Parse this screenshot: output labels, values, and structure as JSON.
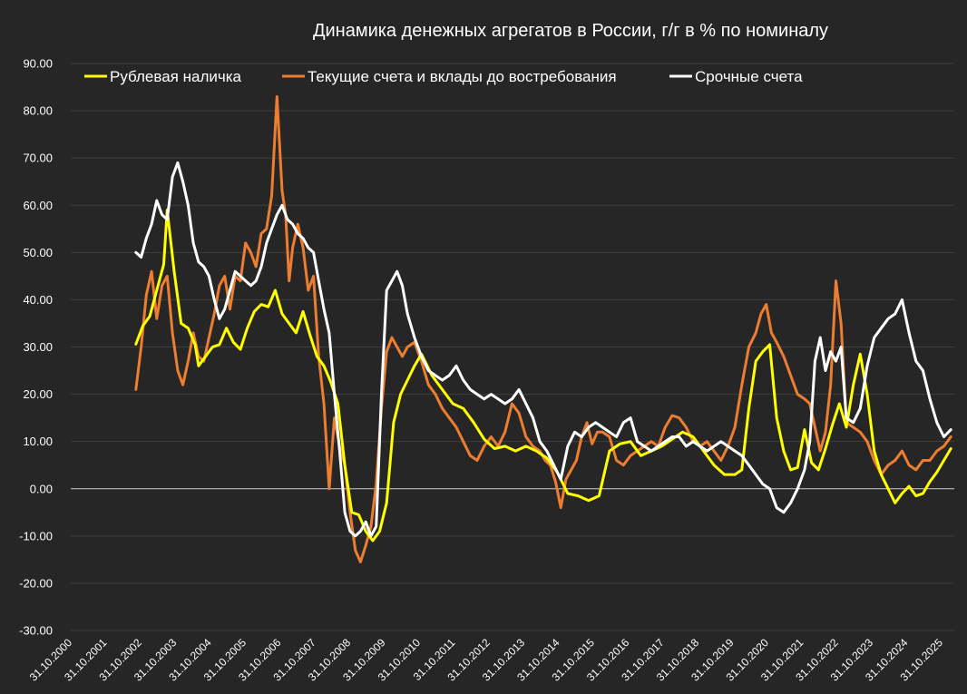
{
  "chart_data": {
    "type": "line",
    "title": "Динамика денежных агрегатов  в России, г/г в % по номиналу",
    "xlabel": "",
    "ylabel": "",
    "ylim": [
      -30,
      90
    ],
    "y_ticks": [
      "90.00",
      "80.00",
      "70.00",
      "60.00",
      "50.00",
      "40.00",
      "30.00",
      "20.00",
      "10.00",
      "0.00",
      "-10.00",
      "-20.00",
      "-30.00"
    ],
    "y_tick_values": [
      90,
      80,
      70,
      60,
      50,
      40,
      30,
      20,
      10,
      0,
      -10,
      -20,
      -30
    ],
    "x_ticks": [
      "31.10.2000",
      "31.10.2001",
      "31.10.2002",
      "31.10.2003",
      "31.10.2004",
      "31.10.2005",
      "31.10.2006",
      "31.10.2007",
      "31.10.2008",
      "31.10.2009",
      "31.10.2010",
      "31.10.2011",
      "31.10.2012",
      "31.10.2013",
      "31.10.2014",
      "31.10.2015",
      "31.10.2016",
      "31.10.2017",
      "31.10.2018",
      "31.10.2019",
      "31.10.2020",
      "31.10.2021",
      "31.10.2022",
      "31.10.2023",
      "31.10.2024",
      "31.10.2025"
    ],
    "x_tick_years": [
      2000.83,
      2001.83,
      2002.83,
      2003.83,
      2004.83,
      2005.83,
      2006.83,
      2007.83,
      2008.83,
      2009.83,
      2010.83,
      2011.83,
      2012.83,
      2013.83,
      2014.83,
      2015.83,
      2016.83,
      2017.83,
      2018.83,
      2019.83,
      2020.83,
      2021.83,
      2022.83,
      2023.83,
      2024.83,
      2025.83
    ],
    "xlim": [
      2000.83,
      2026.2
    ],
    "grid": "horizontal",
    "legend_position": "top",
    "series": [
      {
        "name": "Рублевая наличка",
        "color": "#ffff00",
        "x": [
          2002.7,
          2002.9,
          2003.1,
          2003.3,
          2003.5,
          2003.6,
          2003.8,
          2004.0,
          2004.2,
          2004.4,
          2004.5,
          2004.7,
          2004.9,
          2005.1,
          2005.3,
          2005.5,
          2005.7,
          2005.9,
          2006.1,
          2006.3,
          2006.5,
          2006.7,
          2006.9,
          2007.1,
          2007.3,
          2007.5,
          2007.7,
          2007.9,
          2008.1,
          2008.3,
          2008.5,
          2008.7,
          2008.9,
          2009.1,
          2009.3,
          2009.5,
          2009.7,
          2009.9,
          2010.1,
          2010.3,
          2010.5,
          2010.7,
          2010.9,
          2011.2,
          2011.5,
          2011.8,
          2012.1,
          2012.4,
          2012.7,
          2013.0,
          2013.3,
          2013.6,
          2013.9,
          2014.2,
          2014.5,
          2014.8,
          2015.1,
          2015.4,
          2015.7,
          2016.0,
          2016.3,
          2016.6,
          2016.9,
          2017.2,
          2017.5,
          2017.8,
          2018.1,
          2018.4,
          2018.7,
          2019.0,
          2019.3,
          2019.6,
          2019.9,
          2020.1,
          2020.3,
          2020.5,
          2020.7,
          2020.9,
          2021.1,
          2021.3,
          2021.5,
          2021.7,
          2021.9,
          2022.1,
          2022.3,
          2022.5,
          2022.7,
          2022.9,
          2023.1,
          2023.3,
          2023.5,
          2023.7,
          2023.9,
          2024.1,
          2024.3,
          2024.5,
          2024.7,
          2024.9,
          2025.1,
          2025.3,
          2025.5,
          2025.7,
          2025.9,
          2026.1
        ],
        "values": [
          30.6,
          34.5,
          36.5,
          42.0,
          47.5,
          59.0,
          46.0,
          35.0,
          34.0,
          30.5,
          26.0,
          28.0,
          30.0,
          30.5,
          34.0,
          31.0,
          29.5,
          34.0,
          37.5,
          39.0,
          38.5,
          42.0,
          37.0,
          35.0,
          33.0,
          37.5,
          32.5,
          28.0,
          26.0,
          22.5,
          18.0,
          5.0,
          -5.0,
          -5.5,
          -9.0,
          -11.0,
          -9.0,
          -3.0,
          14.0,
          20.0,
          23.0,
          26.0,
          28.5,
          24.0,
          21.0,
          18.0,
          17.0,
          14.0,
          10.5,
          8.5,
          9.0,
          8.0,
          9.0,
          8.0,
          6.5,
          3.5,
          -1.0,
          -1.5,
          -2.5,
          -1.5,
          8.0,
          9.5,
          10.0,
          7.0,
          8.0,
          9.0,
          10.5,
          12.0,
          11.0,
          8.0,
          5.0,
          3.0,
          3.0,
          4.0,
          17.0,
          27.0,
          29.0,
          30.5,
          15.0,
          8.0,
          4.0,
          4.5,
          12.5,
          5.5,
          4.0,
          8.5,
          13.5,
          18.0,
          13.0,
          22.0,
          28.5,
          20.0,
          8.0,
          3.0,
          0.0,
          -3.0,
          -1.0,
          0.5,
          -1.5,
          -1.0,
          1.5,
          3.5,
          6.0,
          8.5
        ]
      },
      {
        "name": "Текущие счета и вклады до востребования",
        "color": "#ed7d31",
        "x": [
          2002.7,
          2002.85,
          2003.0,
          2003.15,
          2003.3,
          2003.45,
          2003.6,
          2003.75,
          2003.9,
          2004.05,
          2004.2,
          2004.35,
          2004.5,
          2004.65,
          2004.8,
          2004.95,
          2005.1,
          2005.25,
          2005.4,
          2005.55,
          2005.7,
          2005.85,
          2006.0,
          2006.15,
          2006.3,
          2006.45,
          2006.6,
          2006.75,
          2006.9,
          2007.0,
          2007.1,
          2007.2,
          2007.35,
          2007.5,
          2007.65,
          2007.8,
          2007.95,
          2008.1,
          2008.25,
          2008.4,
          2008.55,
          2008.7,
          2008.85,
          2009.0,
          2009.15,
          2009.3,
          2009.45,
          2009.6,
          2009.75,
          2009.9,
          2010.05,
          2010.2,
          2010.35,
          2010.5,
          2010.7,
          2010.9,
          2011.1,
          2011.3,
          2011.5,
          2011.7,
          2011.9,
          2012.1,
          2012.3,
          2012.5,
          2012.7,
          2012.9,
          2013.1,
          2013.3,
          2013.5,
          2013.7,
          2013.9,
          2014.1,
          2014.3,
          2014.45,
          2014.6,
          2014.75,
          2014.9,
          2015.05,
          2015.2,
          2015.35,
          2015.5,
          2015.65,
          2015.8,
          2015.95,
          2016.1,
          2016.3,
          2016.5,
          2016.7,
          2016.9,
          2017.1,
          2017.3,
          2017.5,
          2017.7,
          2017.9,
          2018.1,
          2018.3,
          2018.5,
          2018.7,
          2018.9,
          2019.1,
          2019.3,
          2019.5,
          2019.7,
          2019.9,
          2020.1,
          2020.3,
          2020.5,
          2020.65,
          2020.8,
          2020.95,
          2021.1,
          2021.3,
          2021.5,
          2021.7,
          2021.9,
          2022.05,
          2022.2,
          2022.35,
          2022.5,
          2022.65,
          2022.8,
          2022.95,
          2023.1,
          2023.3,
          2023.5,
          2023.7,
          2023.9,
          2024.1,
          2024.3,
          2024.5,
          2024.7,
          2024.9,
          2025.1,
          2025.3,
          2025.5,
          2025.7,
          2025.9,
          2026.1
        ],
        "values": [
          21.0,
          30.0,
          41.0,
          46.0,
          36.0,
          43.0,
          45.0,
          33.0,
          25.0,
          22.0,
          27.0,
          33.0,
          28.0,
          27.0,
          32.0,
          37.0,
          43.0,
          45.0,
          38.0,
          45.0,
          44.0,
          52.0,
          50.0,
          47.0,
          54.0,
          55.0,
          62.0,
          83.0,
          63.0,
          58.0,
          44.0,
          51.0,
          56.0,
          51.0,
          42.0,
          45.0,
          28.0,
          18.0,
          0.0,
          15.0,
          9.0,
          5.0,
          -5.0,
          -13.0,
          -15.5,
          -12.0,
          -8.0,
          1.0,
          17.0,
          29.0,
          32.0,
          30.0,
          28.0,
          30.0,
          31.0,
          27.0,
          22.0,
          20.0,
          17.0,
          15.0,
          13.0,
          10.0,
          7.0,
          6.0,
          9.0,
          11.0,
          9.0,
          12.0,
          18.0,
          16.0,
          11.0,
          9.0,
          8.0,
          6.0,
          5.0,
          1.5,
          -4.0,
          2.0,
          4.0,
          6.0,
          11.0,
          14.0,
          9.5,
          12.0,
          12.0,
          11.0,
          6.0,
          5.0,
          7.0,
          8.0,
          9.0,
          10.0,
          9.0,
          13.0,
          15.5,
          15.0,
          13.0,
          10.0,
          9.0,
          10.0,
          8.0,
          6.0,
          9.0,
          13.0,
          22.0,
          30.0,
          33.0,
          37.0,
          39.0,
          33.0,
          31.0,
          28.0,
          24.0,
          20.0,
          19.0,
          18.0,
          13.0,
          8.0,
          12.0,
          22.0,
          44.0,
          35.0,
          14.0,
          13.0,
          12.0,
          10.0,
          6.0,
          3.0,
          5.0,
          6.0,
          8.0,
          5.0,
          4.0,
          6.0,
          6.0,
          8.0,
          9.0,
          11.0
        ]
      },
      {
        "name": "Срочные счета",
        "color": "#ffffff",
        "x": [
          2002.7,
          2002.85,
          2003.0,
          2003.15,
          2003.3,
          2003.45,
          2003.6,
          2003.75,
          2003.9,
          2004.05,
          2004.2,
          2004.35,
          2004.5,
          2004.65,
          2004.8,
          2004.95,
          2005.1,
          2005.25,
          2005.4,
          2005.55,
          2005.7,
          2005.85,
          2006.0,
          2006.15,
          2006.3,
          2006.45,
          2006.6,
          2006.75,
          2006.9,
          2007.05,
          2007.2,
          2007.35,
          2007.5,
          2007.65,
          2007.8,
          2007.95,
          2008.1,
          2008.25,
          2008.4,
          2008.55,
          2008.7,
          2008.85,
          2009.0,
          2009.15,
          2009.3,
          2009.45,
          2009.6,
          2009.75,
          2009.9,
          2010.05,
          2010.2,
          2010.35,
          2010.5,
          2010.7,
          2010.9,
          2011.1,
          2011.3,
          2011.5,
          2011.7,
          2011.9,
          2012.1,
          2012.3,
          2012.5,
          2012.7,
          2012.9,
          2013.1,
          2013.3,
          2013.5,
          2013.7,
          2013.9,
          2014.1,
          2014.3,
          2014.5,
          2014.7,
          2014.9,
          2015.1,
          2015.3,
          2015.5,
          2015.7,
          2015.9,
          2016.1,
          2016.3,
          2016.5,
          2016.7,
          2016.9,
          2017.1,
          2017.3,
          2017.5,
          2017.7,
          2017.9,
          2018.1,
          2018.3,
          2018.5,
          2018.7,
          2018.9,
          2019.1,
          2019.3,
          2019.5,
          2019.7,
          2019.9,
          2020.1,
          2020.3,
          2020.5,
          2020.7,
          2020.9,
          2021.1,
          2021.3,
          2021.5,
          2021.7,
          2021.9,
          2022.05,
          2022.2,
          2022.35,
          2022.5,
          2022.65,
          2022.8,
          2022.95,
          2023.1,
          2023.3,
          2023.5,
          2023.7,
          2023.9,
          2024.1,
          2024.3,
          2024.5,
          2024.7,
          2024.9,
          2025.1,
          2025.3,
          2025.5,
          2025.7,
          2025.9,
          2026.1
        ],
        "values": [
          50.0,
          49.0,
          53.0,
          56.0,
          61.0,
          58.0,
          57.0,
          66.0,
          69.0,
          65.0,
          60.0,
          52.0,
          48.0,
          47.0,
          45.0,
          40.0,
          36.0,
          38.0,
          42.0,
          46.0,
          45.0,
          44.0,
          43.0,
          44.0,
          47.0,
          52.0,
          55.0,
          58.0,
          60.0,
          57.0,
          56.0,
          54.0,
          53.0,
          51.0,
          50.0,
          44.0,
          38.0,
          33.0,
          20.0,
          8.0,
          -5.0,
          -9.0,
          -10.0,
          -9.0,
          -7.0,
          -10.0,
          -8.0,
          20.0,
          42.0,
          44.0,
          46.0,
          43.0,
          37.0,
          32.0,
          28.0,
          25.0,
          24.0,
          23.0,
          24.0,
          26.0,
          23.0,
          21.0,
          20.0,
          19.0,
          20.0,
          19.0,
          18.0,
          19.0,
          21.0,
          18.0,
          15.0,
          10.0,
          8.0,
          5.0,
          2.0,
          9.0,
          12.0,
          11.0,
          13.0,
          14.0,
          13.0,
          12.0,
          11.0,
          14.0,
          15.0,
          10.0,
          9.0,
          8.0,
          9.0,
          10.0,
          11.0,
          11.0,
          9.0,
          10.0,
          9.0,
          8.0,
          9.0,
          10.0,
          9.0,
          8.0,
          7.0,
          5.0,
          3.0,
          1.0,
          0.0,
          -4.0,
          -5.0,
          -3.0,
          0.0,
          4.0,
          10.0,
          27.0,
          32.0,
          25.0,
          29.0,
          27.0,
          30.0,
          15.0,
          14.0,
          17.0,
          26.0,
          32.0,
          34.0,
          36.0,
          37.0,
          40.0,
          33.0,
          27.0,
          25.0,
          19.0,
          14.0,
          11.0,
          12.5
        ]
      }
    ]
  }
}
